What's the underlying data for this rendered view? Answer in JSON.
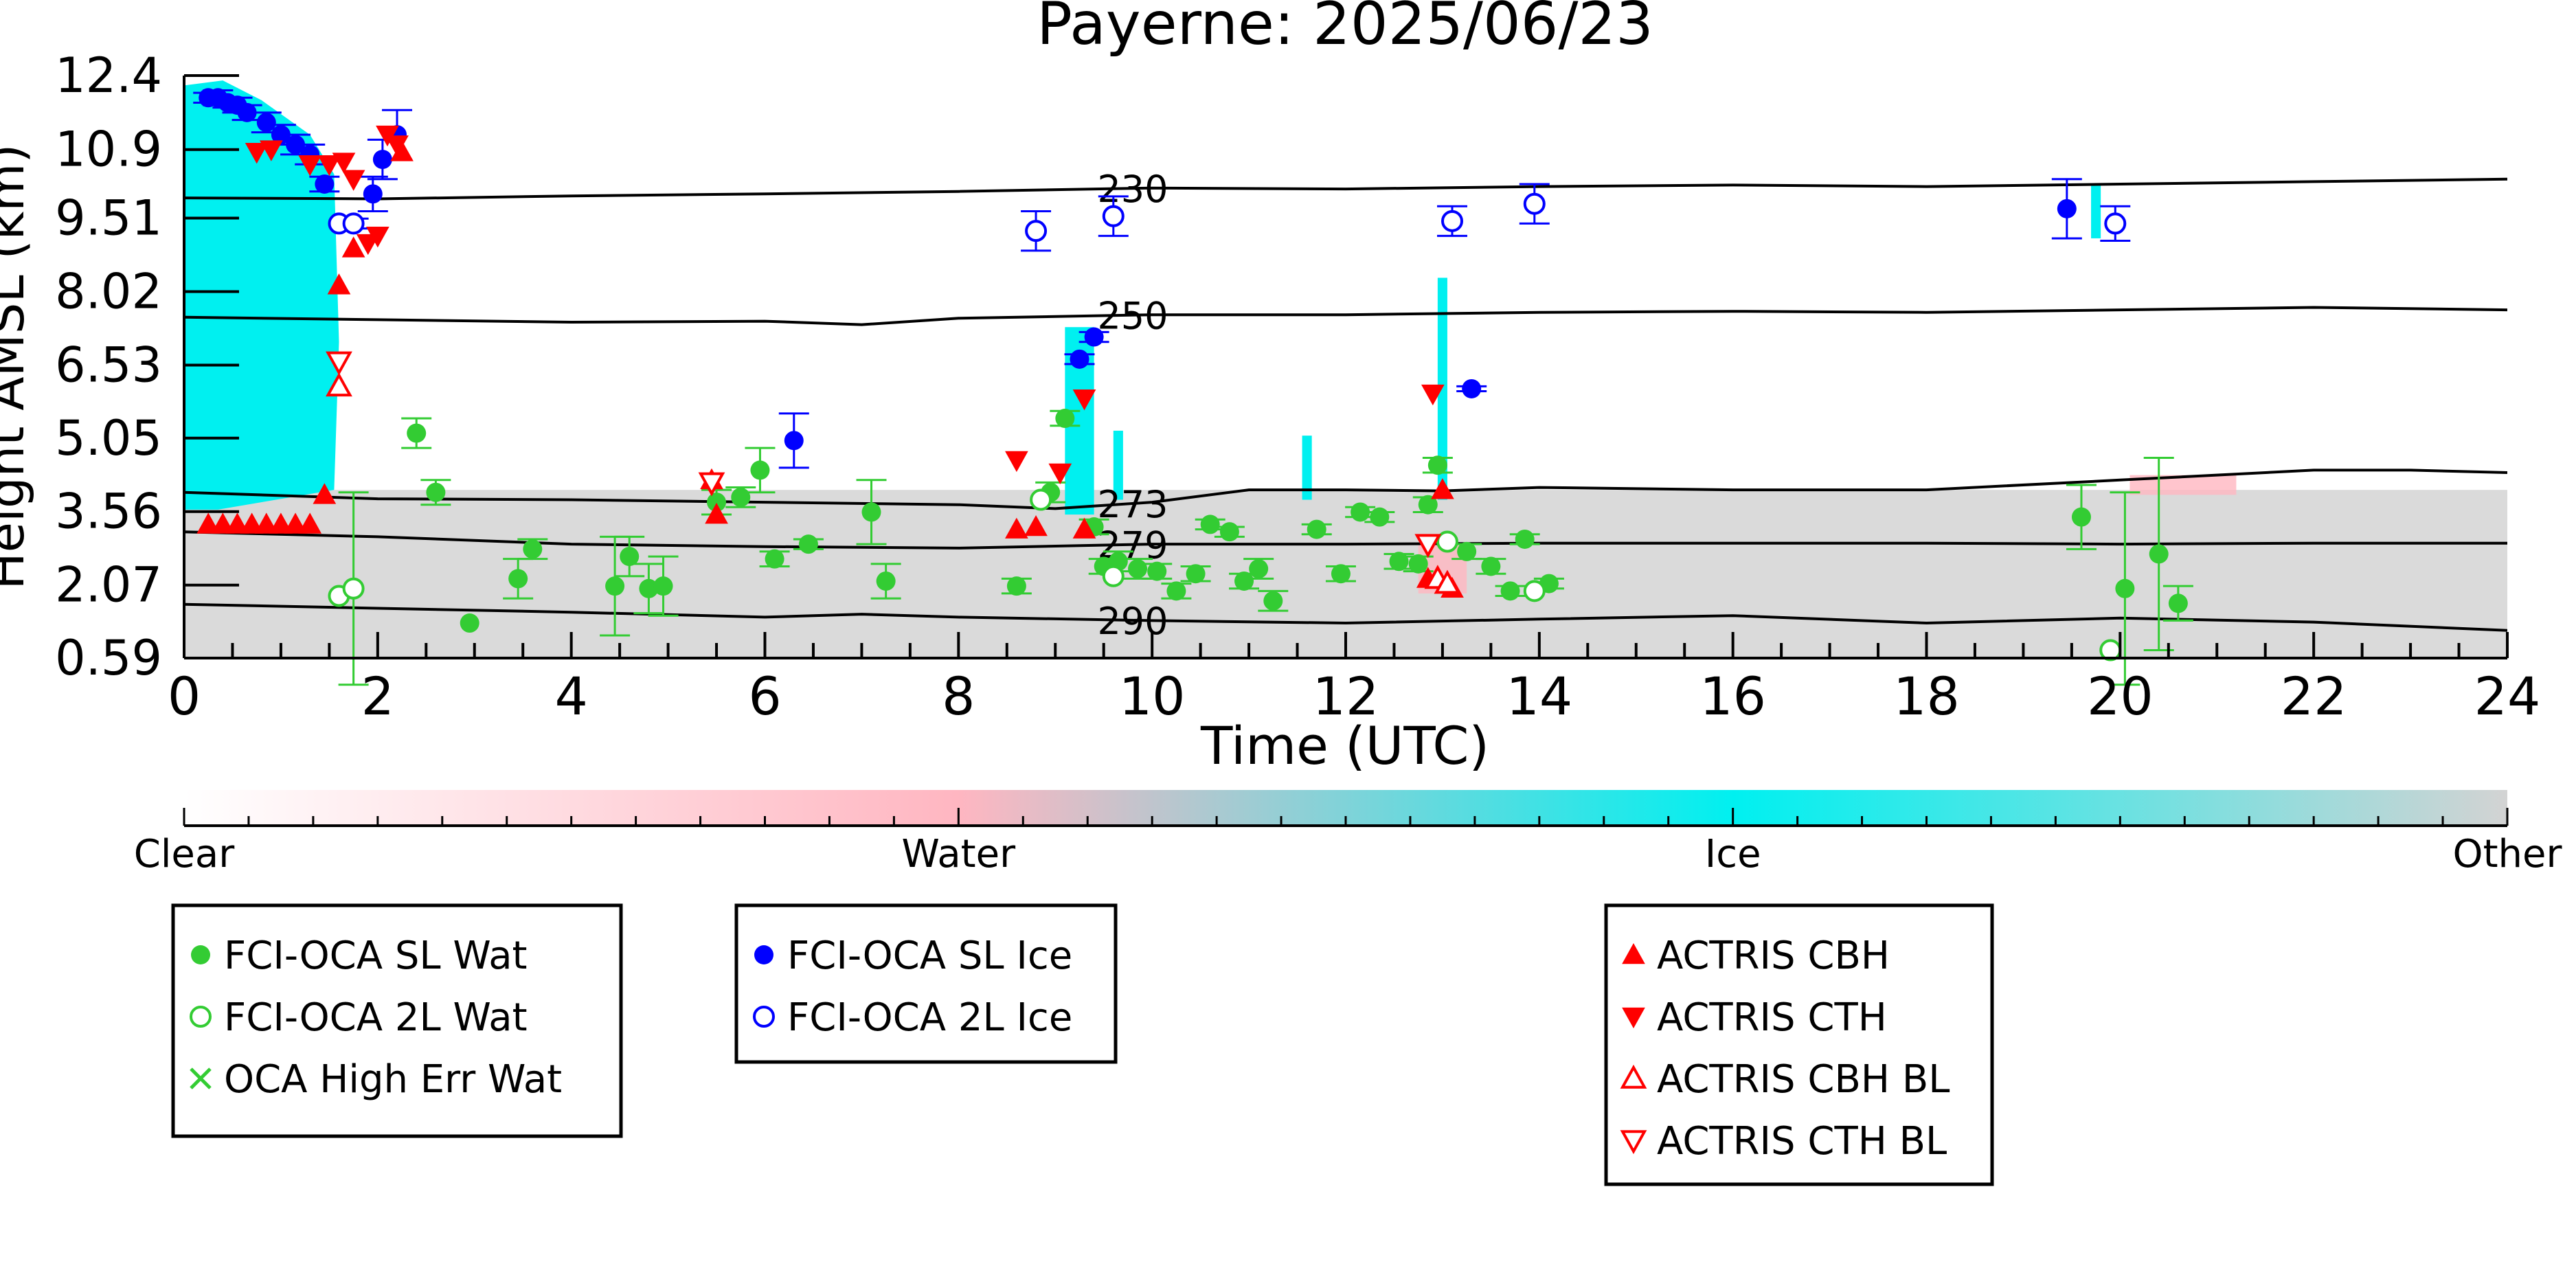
{
  "chart_data": {
    "type": "scatter",
    "title": "Payerne: 2025/06/23",
    "xlabel": "Time (UTC)",
    "ylabel": "Height AMSL (km)",
    "xlim": [
      0,
      24
    ],
    "ylim": [
      0.59,
      12.4
    ],
    "xticks": [
      0,
      2,
      4,
      6,
      8,
      10,
      12,
      14,
      16,
      18,
      20,
      22,
      24
    ],
    "yticks": [
      0.59,
      2.07,
      3.56,
      5.05,
      6.53,
      8.02,
      9.51,
      10.9,
      12.4
    ],
    "ytick_labels": [
      "0.59",
      "2.07",
      "3.56",
      "5.05",
      "6.53",
      "8.02",
      "9.51",
      "10.9",
      "12.4"
    ],
    "colorbar": {
      "labels": [
        "Clear",
        "Water",
        "Ice",
        "Other"
      ],
      "colors": [
        "#ffffff",
        "#ffb6c1",
        "#00f0f0",
        "#d3d3d3"
      ]
    },
    "contours": [
      {
        "label": "230",
        "label_x": 9.8,
        "points": [
          [
            0,
            9.92
          ],
          [
            2,
            9.9
          ],
          [
            4,
            9.96
          ],
          [
            6,
            10.0
          ],
          [
            8,
            10.05
          ],
          [
            10,
            10.12
          ],
          [
            12,
            10.1
          ],
          [
            14,
            10.15
          ],
          [
            16,
            10.18
          ],
          [
            18,
            10.15
          ],
          [
            20,
            10.2
          ],
          [
            22,
            10.25
          ],
          [
            24,
            10.3
          ]
        ]
      },
      {
        "label": "250",
        "label_x": 9.8,
        "points": [
          [
            0,
            7.5
          ],
          [
            2,
            7.45
          ],
          [
            4,
            7.4
          ],
          [
            6,
            7.42
          ],
          [
            7,
            7.35
          ],
          [
            8,
            7.48
          ],
          [
            10,
            7.55
          ],
          [
            12,
            7.55
          ],
          [
            14,
            7.6
          ],
          [
            16,
            7.62
          ],
          [
            18,
            7.6
          ],
          [
            20,
            7.65
          ],
          [
            22,
            7.7
          ],
          [
            24,
            7.65
          ]
        ]
      },
      {
        "label": "273",
        "label_x": 9.8,
        "points": [
          [
            0,
            3.95
          ],
          [
            2,
            3.82
          ],
          [
            4,
            3.8
          ],
          [
            6,
            3.75
          ],
          [
            8,
            3.7
          ],
          [
            9,
            3.62
          ],
          [
            10,
            3.75
          ],
          [
            11,
            4.0
          ],
          [
            12,
            4.0
          ],
          [
            13,
            3.98
          ],
          [
            14,
            4.05
          ],
          [
            16,
            4.0
          ],
          [
            18,
            4.0
          ],
          [
            20,
            4.2
          ],
          [
            22,
            4.4
          ],
          [
            23,
            4.4
          ],
          [
            24,
            4.35
          ]
        ]
      },
      {
        "label": "279",
        "label_x": 9.8,
        "points": [
          [
            0,
            3.15
          ],
          [
            2,
            3.05
          ],
          [
            4,
            2.9
          ],
          [
            6,
            2.85
          ],
          [
            8,
            2.82
          ],
          [
            10,
            2.9
          ],
          [
            12,
            2.9
          ],
          [
            14,
            2.92
          ],
          [
            16,
            2.92
          ],
          [
            18,
            2.92
          ],
          [
            20,
            2.9
          ],
          [
            22,
            2.92
          ],
          [
            24,
            2.92
          ]
        ]
      },
      {
        "label": "290",
        "label_x": 9.8,
        "points": [
          [
            0,
            1.68
          ],
          [
            2,
            1.6
          ],
          [
            4,
            1.52
          ],
          [
            6,
            1.42
          ],
          [
            7,
            1.48
          ],
          [
            8,
            1.42
          ],
          [
            10,
            1.35
          ],
          [
            12,
            1.3
          ],
          [
            14,
            1.38
          ],
          [
            16,
            1.45
          ],
          [
            18,
            1.3
          ],
          [
            20,
            1.4
          ],
          [
            22,
            1.32
          ],
          [
            24,
            1.15
          ]
        ]
      }
    ],
    "series": [
      {
        "name": "FCI-OCA SL Wat",
        "marker": "circle-filled",
        "color": "#33cc33",
        "points": [
          [
            2.4,
            5.15,
            0.3
          ],
          [
            2.6,
            3.95,
            0.25
          ],
          [
            2.95,
            1.3,
            0
          ],
          [
            3.45,
            2.2,
            0.4
          ],
          [
            3.6,
            2.8,
            0.2
          ],
          [
            4.45,
            2.05,
            1.0
          ],
          [
            4.6,
            2.65,
            0.4
          ],
          [
            4.8,
            2.0,
            0.5
          ],
          [
            4.95,
            2.05,
            0.6
          ],
          [
            5.5,
            3.75,
            0.25
          ],
          [
            5.75,
            3.85,
            0.2
          ],
          [
            5.95,
            4.4,
            0.45
          ],
          [
            6.1,
            2.6,
            0.15
          ],
          [
            6.45,
            2.9,
            0.1
          ],
          [
            7.1,
            3.55,
            0.65
          ],
          [
            7.25,
            2.15,
            0.35
          ],
          [
            8.6,
            2.05,
            0.15
          ],
          [
            8.95,
            3.95,
            0.2
          ],
          [
            9.1,
            5.45,
            0.15
          ],
          [
            9.4,
            3.25,
            0.15
          ],
          [
            9.5,
            2.45,
            0.15
          ],
          [
            9.65,
            2.55,
            0.2
          ],
          [
            9.85,
            2.4,
            0.2
          ],
          [
            10.05,
            2.35,
            0.15
          ],
          [
            10.25,
            1.95,
            0.15
          ],
          [
            10.45,
            2.3,
            0.15
          ],
          [
            10.6,
            3.3,
            0.1
          ],
          [
            10.8,
            3.15,
            0.1
          ],
          [
            10.95,
            2.15,
            0.15
          ],
          [
            11.1,
            2.4,
            0.2
          ],
          [
            11.25,
            1.75,
            0.2
          ],
          [
            11.7,
            3.2,
            0.1
          ],
          [
            11.95,
            2.3,
            0.15
          ],
          [
            12.15,
            3.55,
            0.1
          ],
          [
            12.35,
            3.45,
            0.1
          ],
          [
            12.55,
            2.55,
            0.15
          ],
          [
            12.75,
            2.5,
            0.15
          ],
          [
            12.85,
            3.7,
            0.15
          ],
          [
            12.95,
            4.5,
            0.15
          ],
          [
            13.25,
            2.75,
            0.15
          ],
          [
            13.5,
            2.45,
            0.15
          ],
          [
            13.7,
            1.95,
            0.1
          ],
          [
            13.85,
            3.0,
            0.1
          ],
          [
            14.1,
            2.1,
            0.1
          ],
          [
            19.6,
            3.45,
            0.65
          ],
          [
            20.05,
            2.0,
            1.95
          ],
          [
            20.4,
            2.7,
            1.95
          ],
          [
            20.6,
            1.7,
            0.35
          ]
        ]
      },
      {
        "name": "FCI-OCA 2L Wat",
        "marker": "circle-open",
        "color": "#33cc33",
        "points": [
          [
            1.6,
            1.85,
            0
          ],
          [
            1.75,
            2.0,
            1.95
          ],
          [
            8.85,
            3.8,
            0
          ],
          [
            9.6,
            2.25,
            0
          ],
          [
            13.05,
            2.95,
            0
          ],
          [
            13.95,
            1.95,
            0
          ],
          [
            19.9,
            0.75,
            0
          ]
        ]
      },
      {
        "name": "OCA High Err Wat",
        "marker": "x",
        "color": "#33cc33",
        "points": []
      },
      {
        "name": "FCI-OCA SL Ice",
        "marker": "circle-filled",
        "color": "#0000ff",
        "points": [
          [
            0.25,
            11.95,
            0.1
          ],
          [
            0.35,
            11.95,
            0.15
          ],
          [
            0.45,
            11.85,
            0.1
          ],
          [
            0.55,
            11.8,
            0.15
          ],
          [
            0.65,
            11.65,
            0.15
          ],
          [
            0.85,
            11.45,
            0.2
          ],
          [
            1.0,
            11.2,
            0.2
          ],
          [
            1.15,
            11.0,
            0.2
          ],
          [
            1.3,
            10.8,
            0.2
          ],
          [
            1.45,
            10.2,
            0.15
          ],
          [
            1.95,
            10.0,
            0.35
          ],
          [
            2.05,
            10.7,
            0.4
          ],
          [
            2.2,
            11.2,
            0.5
          ],
          [
            6.3,
            5.0,
            0.55
          ],
          [
            9.25,
            6.65,
            0.1
          ],
          [
            9.4,
            7.1,
            0.1
          ],
          [
            13.3,
            6.05,
            0.05
          ],
          [
            19.45,
            9.7,
            0.6
          ]
        ]
      },
      {
        "name": "FCI-OCA 2L Ice",
        "marker": "circle-open",
        "color": "#0000ff",
        "points": [
          [
            1.6,
            9.4,
            0
          ],
          [
            1.75,
            9.4,
            0.1
          ],
          [
            8.8,
            9.25,
            0.4
          ],
          [
            9.6,
            9.55,
            0.4
          ],
          [
            13.1,
            9.45,
            0.3
          ],
          [
            13.95,
            9.8,
            0.4
          ],
          [
            19.95,
            9.4,
            0.35
          ]
        ]
      },
      {
        "name": "ACTRIS CBH",
        "marker": "triangle-up-filled",
        "color": "#ff0000",
        "points": [
          [
            0.25,
            3.3,
            0
          ],
          [
            0.4,
            3.3,
            0
          ],
          [
            0.55,
            3.3,
            0
          ],
          [
            0.7,
            3.3,
            0
          ],
          [
            0.85,
            3.3,
            0
          ],
          [
            1.0,
            3.3,
            0
          ],
          [
            1.15,
            3.3,
            0
          ],
          [
            1.3,
            3.3,
            0
          ],
          [
            1.45,
            3.9,
            0
          ],
          [
            1.6,
            8.15,
            0
          ],
          [
            1.75,
            8.9,
            0
          ],
          [
            2.25,
            10.85,
            0
          ],
          [
            5.45,
            4.2,
            0
          ],
          [
            5.5,
            3.5,
            0
          ],
          [
            8.6,
            3.2,
            0
          ],
          [
            8.8,
            3.25,
            0
          ],
          [
            9.3,
            3.2,
            0
          ],
          [
            12.85,
            2.2,
            0
          ],
          [
            12.95,
            2.2,
            0
          ],
          [
            13.0,
            4.0,
            0
          ],
          [
            13.1,
            2.0,
            0
          ]
        ]
      },
      {
        "name": "ACTRIS CTH",
        "marker": "triangle-down-filled",
        "color": "#ff0000",
        "points": [
          [
            0.75,
            10.85,
            0
          ],
          [
            0.9,
            10.9,
            0
          ],
          [
            1.3,
            10.6,
            0
          ],
          [
            1.5,
            10.6,
            0
          ],
          [
            1.65,
            10.65,
            0
          ],
          [
            1.75,
            10.3,
            0
          ],
          [
            1.9,
            9.0,
            0
          ],
          [
            2.0,
            9.15,
            0
          ],
          [
            2.1,
            11.2,
            0
          ],
          [
            2.2,
            11.0,
            0
          ],
          [
            8.6,
            4.6,
            0
          ],
          [
            9.05,
            4.35,
            0
          ],
          [
            9.3,
            5.85,
            0
          ],
          [
            12.9,
            5.95,
            0
          ]
        ]
      },
      {
        "name": "ACTRIS CBH BL",
        "marker": "triangle-up-open",
        "color": "#ff0000",
        "points": [
          [
            1.6,
            6.1,
            0
          ],
          [
            12.95,
            2.2,
            0
          ],
          [
            13.05,
            2.1,
            0
          ]
        ]
      },
      {
        "name": "ACTRIS CTH BL",
        "marker": "triangle-down-open",
        "color": "#ff0000",
        "points": [
          [
            1.6,
            6.6,
            0
          ],
          [
            5.45,
            4.15,
            0
          ],
          [
            12.85,
            2.9,
            0
          ]
        ]
      }
    ],
    "legends": [
      {
        "entries": [
          "FCI-OCA SL Wat",
          "FCI-OCA 2L Wat",
          "OCA High Err Wat"
        ]
      },
      {
        "entries": [
          "FCI-OCA SL Ice",
          "FCI-OCA 2L Ice"
        ]
      },
      {
        "entries": [
          "ACTRIS CBH",
          "ACTRIS CTH",
          "ACTRIS CBH BL",
          "ACTRIS CTH BL"
        ]
      }
    ]
  }
}
